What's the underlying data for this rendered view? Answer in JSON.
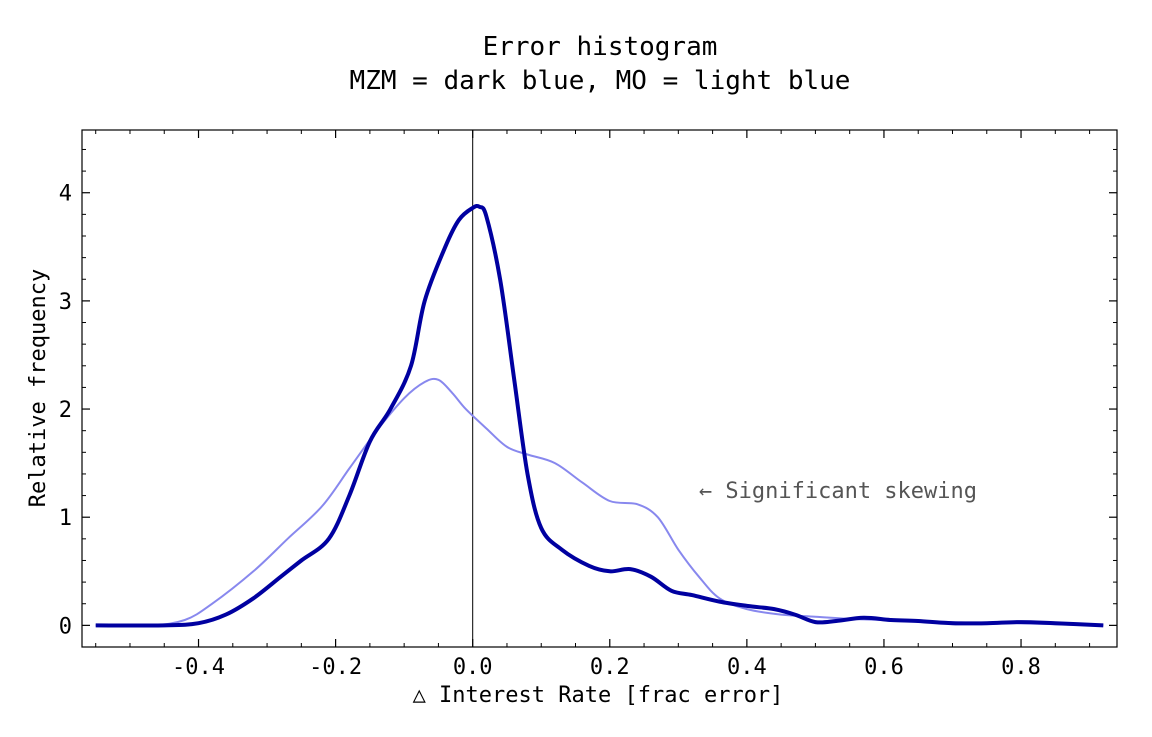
{
  "chart_data": {
    "type": "line",
    "title": "Error histogram",
    "subtitle": "MZM = dark blue, MO = light blue",
    "xlabel": "△ Interest Rate [frac error]",
    "ylabel": "Relative frequency",
    "xlim": [
      -0.57,
      0.94
    ],
    "ylim": [
      -0.2,
      4.58
    ],
    "x_ticks": [
      -0.4,
      -0.2,
      0.0,
      0.2,
      0.4,
      0.6,
      0.8
    ],
    "x_tick_labels": [
      "-0.4",
      "-0.2",
      "0.0",
      "0.2",
      "0.4",
      "0.6",
      "0.8"
    ],
    "y_ticks": [
      0,
      1,
      2,
      3,
      4
    ],
    "y_tick_labels": [
      "0",
      "1",
      "2",
      "3",
      "4"
    ],
    "vertical_line_x": 0.0,
    "grid": false,
    "annotation": {
      "text": "← Significant skewing",
      "x": 0.33,
      "y": 1.25
    },
    "colors": {
      "series_dark": "#0000a0",
      "series_light": "#8888ee",
      "axis": "#000000",
      "annotation": "#555555"
    },
    "series": [
      {
        "x": [
          -0.55,
          -0.45,
          -0.4,
          -0.36,
          -0.32,
          -0.28,
          -0.25,
          -0.21,
          -0.18,
          -0.15,
          -0.12,
          -0.09,
          -0.07,
          -0.04,
          -0.02,
          0.0,
          0.01,
          0.02,
          0.04,
          0.06,
          0.08,
          0.1,
          0.13,
          0.17,
          0.2,
          0.23,
          0.26,
          0.29,
          0.32,
          0.36,
          0.4,
          0.44,
          0.47,
          0.5,
          0.53,
          0.57,
          0.61,
          0.65,
          0.7,
          0.75,
          0.8,
          0.85,
          0.92
        ],
        "values": [
          0,
          0,
          0.02,
          0.1,
          0.25,
          0.45,
          0.6,
          0.8,
          1.2,
          1.7,
          2.0,
          2.4,
          3.0,
          3.5,
          3.75,
          3.86,
          3.87,
          3.78,
          3.2,
          2.3,
          1.4,
          0.9,
          0.7,
          0.55,
          0.5,
          0.52,
          0.45,
          0.32,
          0.28,
          0.22,
          0.18,
          0.15,
          0.1,
          0.03,
          0.04,
          0.07,
          0.05,
          0.04,
          0.02,
          0.02,
          0.03,
          0.02,
          0.0
        ]
      },
      {
        "x": [
          -0.55,
          -0.47,
          -0.42,
          -0.38,
          -0.32,
          -0.27,
          -0.22,
          -0.18,
          -0.14,
          -0.1,
          -0.07,
          -0.05,
          -0.03,
          -0.01,
          0.02,
          0.05,
          0.08,
          0.12,
          0.16,
          0.2,
          0.24,
          0.27,
          0.3,
          0.33,
          0.36,
          0.4,
          0.45,
          0.5,
          0.55,
          0.6,
          0.65,
          0.7,
          0.75,
          0.8,
          0.85,
          0.92
        ],
        "values": [
          0,
          0,
          0.05,
          0.2,
          0.5,
          0.8,
          1.1,
          1.45,
          1.8,
          2.1,
          2.25,
          2.27,
          2.15,
          2.0,
          1.82,
          1.65,
          1.58,
          1.5,
          1.32,
          1.15,
          1.12,
          1.0,
          0.7,
          0.45,
          0.25,
          0.15,
          0.1,
          0.08,
          0.06,
          0.05,
          0.04,
          0.03,
          0.02,
          0.02,
          0.01,
          0.0
        ]
      }
    ]
  }
}
